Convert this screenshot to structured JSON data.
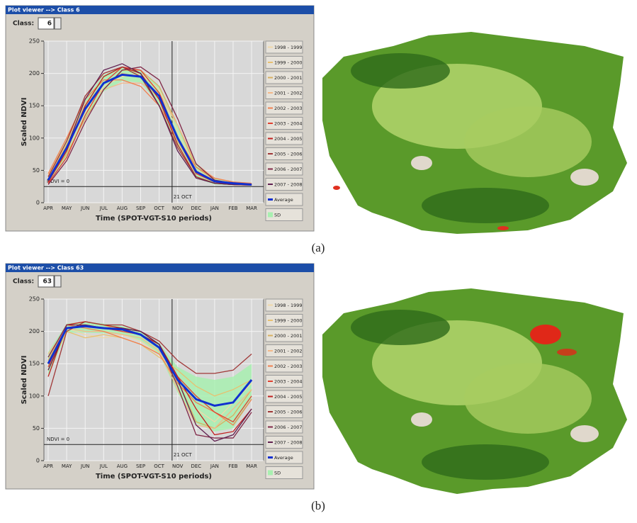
{
  "chart_data": [
    {
      "type": "line",
      "window_title": "Plot viewer --> Class 6",
      "class_label": "Class:",
      "class_value": "6",
      "caption": "(a)",
      "y_label": "Scaled NDVI",
      "x_label": "Time (SPOT-VGT-S10 periods)",
      "categories": [
        "APR",
        "MAY",
        "JUN",
        "JUL",
        "AUG",
        "SEP",
        "OCT",
        "NOV",
        "DEC",
        "JAN",
        "FEB",
        "MAR"
      ],
      "ylim": [
        0,
        250
      ],
      "yticks": [
        0,
        50,
        100,
        150,
        200,
        250
      ],
      "grid": true,
      "hline": {
        "y": 25,
        "label": "NDVI = 0"
      },
      "vline": {
        "x": 6.7,
        "label": "21 OCT"
      },
      "series": [
        {
          "name": "1998 - 1999",
          "color": "#f0d8a8",
          "values": [
            38,
            80,
            140,
            180,
            195,
            200,
            175,
            110,
            50,
            35,
            30,
            28
          ]
        },
        {
          "name": "1999 - 2000",
          "color": "#e8c070",
          "values": [
            40,
            90,
            150,
            185,
            200,
            195,
            160,
            95,
            45,
            32,
            30,
            28
          ]
        },
        {
          "name": "2000 - 2001",
          "color": "#d8b060",
          "values": [
            35,
            75,
            130,
            175,
            205,
            205,
            180,
            120,
            55,
            35,
            30,
            29
          ]
        },
        {
          "name": "2001 - 2002",
          "color": "#f4b888",
          "values": [
            42,
            95,
            155,
            175,
            185,
            185,
            170,
            120,
            60,
            38,
            32,
            30
          ]
        },
        {
          "name": "2002 - 2003",
          "color": "#f08050",
          "values": [
            45,
            100,
            160,
            190,
            190,
            180,
            150,
            100,
            55,
            38,
            32,
            30
          ]
        },
        {
          "name": "2003 - 2004",
          "color": "#e04030",
          "values": [
            30,
            70,
            135,
            185,
            210,
            205,
            170,
            100,
            45,
            32,
            28,
            27
          ]
        },
        {
          "name": "2004 - 2005",
          "color": "#c02020",
          "values": [
            32,
            80,
            150,
            195,
            210,
            200,
            160,
            90,
            40,
            30,
            28,
            27
          ]
        },
        {
          "name": "2005 - 2006",
          "color": "#a03838",
          "values": [
            40,
            95,
            165,
            200,
            210,
            195,
            150,
            85,
            40,
            30,
            28,
            27
          ]
        },
        {
          "name": "2006 - 2007",
          "color": "#802848",
          "values": [
            28,
            65,
            125,
            175,
            205,
            210,
            190,
            130,
            60,
            35,
            30,
            28
          ]
        },
        {
          "name": "2007 - 2008",
          "color": "#602050",
          "values": [
            35,
            85,
            160,
            205,
            215,
            200,
            150,
            80,
            38,
            30,
            28,
            28
          ]
        },
        {
          "name": "Average",
          "color": "#1030d0",
          "line_width": 3,
          "values": [
            35,
            85,
            145,
            185,
            198,
            195,
            165,
            100,
            48,
            33,
            30,
            28
          ]
        }
      ],
      "band": {
        "name": "SD",
        "color": "#a8f0b0",
        "lower": [
          28,
          72,
          130,
          172,
          188,
          186,
          152,
          86,
          38,
          28,
          27,
          26
        ],
        "upper": [
          44,
          98,
          160,
          198,
          210,
          205,
          180,
          118,
          60,
          38,
          33,
          30
        ]
      }
    },
    {
      "type": "line",
      "window_title": "Plot viewer --> Class 63",
      "class_label": "Class:",
      "class_value": "63",
      "caption": "(b)",
      "y_label": "Scaled NDVI",
      "x_label": "Time (SPOT-VGT-S10 periods)",
      "categories": [
        "APR",
        "MAY",
        "JUN",
        "JUL",
        "AUG",
        "SEP",
        "OCT",
        "NOV",
        "DEC",
        "JAN",
        "FEB",
        "MAR"
      ],
      "ylim": [
        0,
        250
      ],
      "yticks": [
        0,
        50,
        100,
        150,
        200,
        250
      ],
      "grid": true,
      "hline": {
        "y": 25,
        "label": "NDVI = 0"
      },
      "vline": {
        "x": 6.7,
        "label": "21 OCT"
      },
      "series": [
        {
          "name": "1998 - 1999",
          "color": "#f0d8a8",
          "values": [
            160,
            205,
            195,
            190,
            195,
            185,
            165,
            130,
            80,
            60,
            90,
            120
          ]
        },
        {
          "name": "1999 - 2000",
          "color": "#e8c070",
          "values": [
            140,
            200,
            190,
            195,
            190,
            180,
            160,
            140,
            115,
            100,
            110,
            125
          ]
        },
        {
          "name": "2000 - 2001",
          "color": "#d8b060",
          "values": [
            155,
            210,
            215,
            210,
            200,
            195,
            175,
            125,
            60,
            50,
            70,
            110
          ]
        },
        {
          "name": "2001 - 2002",
          "color": "#f4b888",
          "values": [
            165,
            205,
            200,
            200,
            195,
            190,
            170,
            110,
            55,
            50,
            80,
            110
          ]
        },
        {
          "name": "2002 - 2003",
          "color": "#f08050",
          "values": [
            150,
            210,
            205,
            200,
            190,
            180,
            165,
            120,
            90,
            75,
            55,
            95
          ]
        },
        {
          "name": "2003 - 2004",
          "color": "#e04030",
          "values": [
            145,
            205,
            210,
            205,
            200,
            195,
            180,
            130,
            100,
            75,
            60,
            100
          ]
        },
        {
          "name": "2004 - 2005",
          "color": "#c02020",
          "values": [
            130,
            210,
            215,
            210,
            205,
            195,
            180,
            130,
            80,
            40,
            45,
            80
          ]
        },
        {
          "name": "2005 - 2006",
          "color": "#a03838",
          "values": [
            100,
            200,
            215,
            210,
            210,
            200,
            185,
            155,
            135,
            135,
            140,
            165
          ]
        },
        {
          "name": "2006 - 2007",
          "color": "#802848",
          "values": [
            160,
            210,
            210,
            205,
            205,
            200,
            180,
            115,
            40,
            35,
            35,
            75
          ]
        },
        {
          "name": "2007 - 2008",
          "color": "#602050",
          "values": [
            140,
            205,
            210,
            205,
            205,
            200,
            180,
            125,
            55,
            30,
            40,
            80
          ]
        },
        {
          "name": "Average",
          "color": "#1030d0",
          "line_width": 3,
          "values": [
            150,
            205,
            208,
            205,
            203,
            195,
            175,
            125,
            95,
            85,
            90,
            125
          ]
        }
      ],
      "band": {
        "name": "SD",
        "color": "#a8f0b0",
        "lower": [
          130,
          198,
          198,
          197,
          195,
          186,
          165,
          105,
          58,
          45,
          50,
          95
        ],
        "upper": [
          168,
          212,
          215,
          212,
          208,
          200,
          182,
          145,
          130,
          125,
          130,
          150
        ]
      }
    }
  ]
}
